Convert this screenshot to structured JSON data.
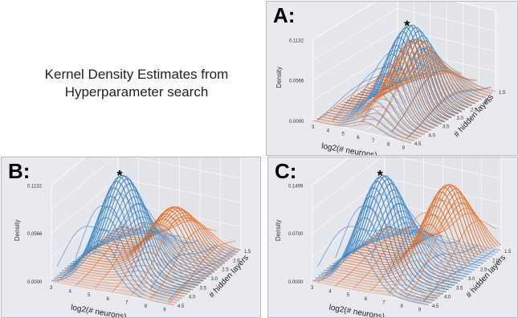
{
  "caption_line1": "Kernel Density Estimates from",
  "caption_line2": "Hyperparameter search",
  "colors": {
    "blue": "#2f7cc0",
    "orange": "#e2681f",
    "panel_bg": "#e9e9ef"
  },
  "chart_data": [
    {
      "type": "3d-ridge",
      "label": "A:",
      "xlabel": "log2(# neurons)",
      "ylabel": "# hidden layers",
      "zlabel": "Density",
      "z_ticks": [
        "0.1132",
        "0.0566",
        "0.0000"
      ],
      "x_ticks": [
        "3",
        "4",
        "5",
        "6",
        "7",
        "8",
        "9"
      ],
      "y_ticks": [
        "1.5",
        "2.0",
        "2.5",
        "3.0",
        "3.5",
        "4.0",
        "4.5"
      ],
      "peak_marker": "*",
      "series": [
        {
          "color": "blue",
          "peak_x": 6.5,
          "peak_y": 3.0,
          "peak_density": 0.1132
        },
        {
          "color": "orange",
          "peak_x": 6.8,
          "peak_y": 3.0,
          "peak_density": 0.095
        }
      ]
    },
    {
      "type": "3d-ridge",
      "label": "B:",
      "xlabel": "log2(# neurons)",
      "ylabel": "# hidden layers",
      "zlabel": "Density",
      "z_ticks": [
        "0.1132",
        "0.0566",
        "0.0000"
      ],
      "x_ticks": [
        "3",
        "4",
        "5",
        "6",
        "7",
        "8",
        "9"
      ],
      "y_ticks": [
        "1.5",
        "2.0",
        "2.5",
        "3.0",
        "3.5",
        "4.0",
        "4.5"
      ],
      "peak_marker": "*",
      "series": [
        {
          "color": "blue",
          "peak_x": 5.5,
          "peak_y": 2.5,
          "peak_density": 0.1132
        },
        {
          "color": "orange",
          "peak_x": 7.0,
          "peak_y": 3.5,
          "peak_density": 0.06
        }
      ]
    },
    {
      "type": "3d-ridge",
      "label": "C:",
      "xlabel": "log2(# neurons)",
      "ylabel": "# hidden layers",
      "zlabel": "Density",
      "z_ticks": [
        "0.1499",
        "0.0700",
        "0.0000"
      ],
      "x_ticks": [
        "3",
        "4",
        "5",
        "6",
        "7",
        "8",
        "9"
      ],
      "y_ticks": [
        "1.5",
        "2.0",
        "2.5",
        "3.0",
        "3.5",
        "4.0",
        "4.5"
      ],
      "peak_marker": "*",
      "series": [
        {
          "color": "blue",
          "peak_x": 5.5,
          "peak_y": 2.5,
          "peak_density": 0.1499
        },
        {
          "color": "orange",
          "peak_x": 7.8,
          "peak_y": 3.5,
          "peak_density": 0.12
        }
      ]
    }
  ]
}
